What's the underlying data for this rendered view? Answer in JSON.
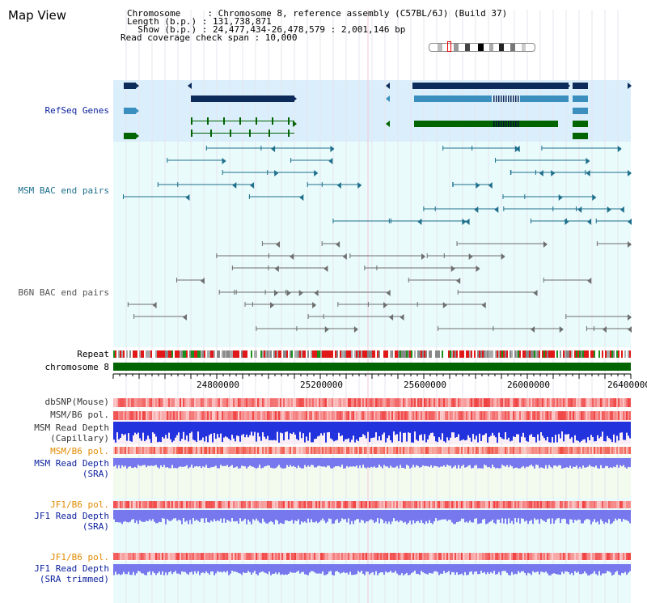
{
  "header": {
    "title": "Map View",
    "info_lines": [
      "Chromosome     : Chromosome 8, reference assembly (C57BL/6J) (Build 37)",
      "Length (b.p.) : 131,738,871",
      "  Show (b.p.) : 24,477,434-26,478,579 : 2,001,146 bp",
      "Read coverage check span : 10,000"
    ]
  },
  "tracks": {
    "refseq": "RefSeq Genes",
    "msm_bac": "MSM BAC end pairs",
    "b6n_bac": "B6N BAC end pairs",
    "repeat": "Repeat",
    "chromosome": "chromosome 8",
    "dbsnp": "dbSNP(Mouse)",
    "msm_b6_pol": "MSM/B6 pol.",
    "msm_depth_cap_1": "MSM Read Depth",
    "msm_depth_cap_2": "(Capillary)",
    "msm_b6_pol2": "MSM/B6 pol.",
    "msm_depth_sra_1": "MSM Read Depth",
    "msm_depth_sra_2": "(SRA)",
    "jf1_b6_pol": "JF1/B6 pol.",
    "jf1_depth_sra_1": "JF1 Read Depth",
    "jf1_depth_sra_2": "(SRA)",
    "jf1_b6_pol2": "JF1/B6 pol.",
    "jf1_depth_trim_1": "JF1 Read Depth",
    "jf1_depth_trim_2": "(SRA trimmed)"
  },
  "axis": {
    "ticks": [
      "24800000",
      "25200000",
      "25600000",
      "26000000",
      "26400000"
    ]
  },
  "colors": {
    "label_blue": "#0a1f9c",
    "label_orange": "#e08a00",
    "gene_navy": "#0c2a5a",
    "gene_mid": "#3a8fbf",
    "gene_green": "#006400",
    "msm_pair": "#1e6f8c",
    "b6n_pair": "#6e6e6e",
    "depth_blue": "#2233dd",
    "depth_violet": "#7777ee"
  }
}
